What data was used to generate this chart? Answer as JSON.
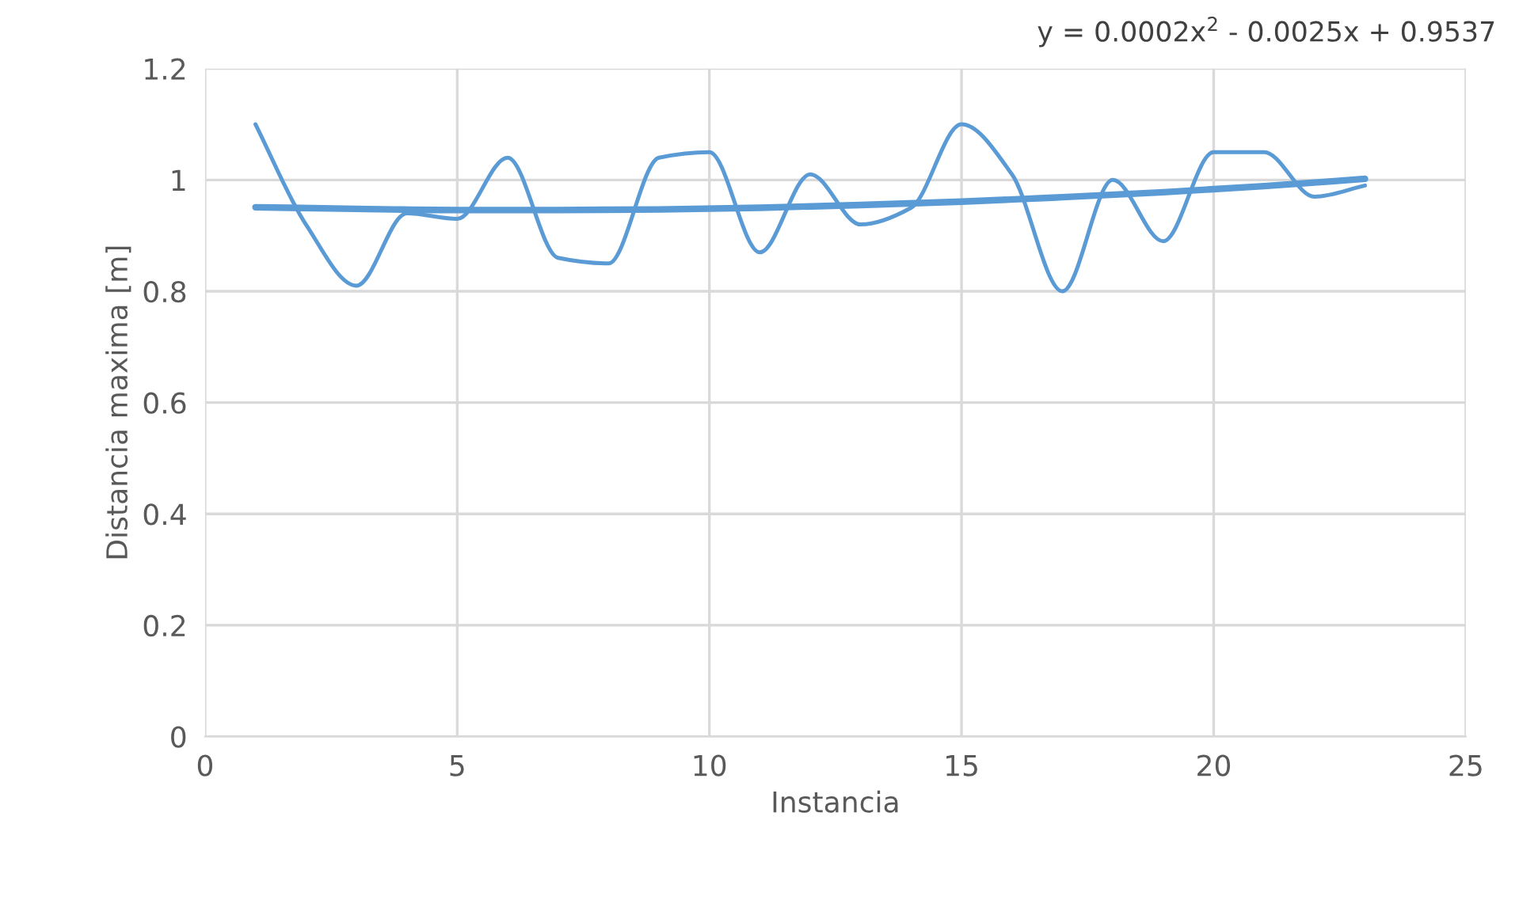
{
  "chart_data": {
    "type": "line",
    "xlabel": "Instancia",
    "ylabel": "Distancia maxima [m]",
    "annotations": [
      "y = 0.0002x$^{2}$ - 0.0025x + 0.9537"
    ],
    "series": [
      {
        "color": "#5b9bd5",
        "x": [
          1,
          2,
          3,
          4,
          5,
          6,
          7,
          8,
          9,
          10,
          11,
          12,
          13,
          14,
          15,
          16,
          17,
          18,
          19,
          20,
          21,
          22,
          23
        ],
        "values": [
          1.1,
          0.92,
          0.81,
          0.94,
          0.93,
          1.04,
          0.86,
          0.85,
          1.04,
          1.05,
          0.87,
          1.01,
          0.92,
          0.95,
          1.1,
          1.01,
          0.8,
          1.0,
          0.89,
          1.05,
          1.05,
          0.97,
          0.99
        ]
      },
      {
        "color": "#5b9bd5",
        "type": "line",
        "x": [
          1,
          3,
          5,
          7,
          9,
          11,
          13,
          15,
          17,
          19,
          21,
          23
        ],
        "values": [
          0.951,
          0.948,
          0.946,
          0.946,
          0.947,
          0.95,
          0.955,
          0.961,
          0.969,
          0.978,
          0.989,
          1.002
        ]
      }
    ],
    "xlim": [
      0,
      25
    ],
    "xticks": [
      0,
      5,
      10,
      15,
      20,
      25
    ],
    "ylim": [
      0,
      1.2
    ],
    "yticks": [
      0,
      0.2,
      0.4,
      0.6,
      0.8,
      1,
      1.2
    ],
    "grid": true,
    "legend": false
  }
}
